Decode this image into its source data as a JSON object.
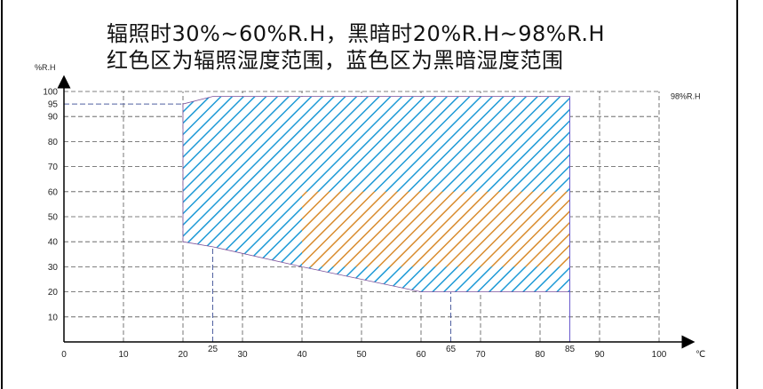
{
  "heading": {
    "line1": "辐照时30%~60%R.H，黑暗时20%R.H~98%R.H",
    "line2": "红色区为辐照湿度范围，蓝色区为黑暗湿度范围"
  },
  "chart_data": {
    "type": "area",
    "xlabel": "℃",
    "ylabel": "%R.H",
    "xlim": [
      0,
      100
    ],
    "ylim": [
      0,
      100
    ],
    "grid": true,
    "x_ticks": [
      "0",
      "10",
      "20",
      "30",
      "40",
      "50",
      "60",
      "70",
      "80",
      "90",
      "100"
    ],
    "y_ticks": [
      "10",
      "20",
      "30",
      "40",
      "50",
      "60",
      "70",
      "80",
      "90",
      "100"
    ],
    "extra_x_ticks": [
      "25",
      "65",
      "85"
    ],
    "extra_y_ticks": [
      "95"
    ],
    "annotations": [
      {
        "text": "98%R.H"
      }
    ],
    "series": [
      {
        "color": "#1e9ad6",
        "polygon": [
          [
            20,
            40
          ],
          [
            25,
            38
          ],
          [
            40,
            30
          ],
          [
            60,
            20
          ],
          [
            85,
            20
          ],
          [
            85,
            98
          ],
          [
            25,
            98
          ],
          [
            20,
            95
          ]
        ]
      },
      {
        "color": "#d98c2e",
        "polygon": [
          [
            40,
            30
          ],
          [
            85,
            30
          ],
          [
            85,
            60
          ],
          [
            40,
            60
          ]
        ]
      }
    ],
    "reference_lines": [
      {
        "axis": "x",
        "value": 25
      },
      {
        "axis": "x",
        "value": 65
      },
      {
        "axis": "x",
        "value": 85
      },
      {
        "axis": "y",
        "value": 95
      }
    ]
  }
}
